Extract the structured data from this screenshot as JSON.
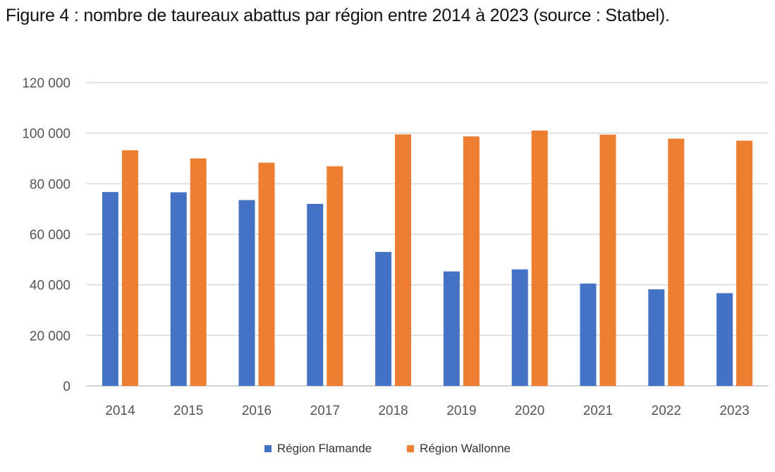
{
  "title": "Figure 4 : nombre de taureaux abattus par région entre 2014 à 2023 (source : Statbel).",
  "chart_data": {
    "type": "bar",
    "title": "Figure 4 : nombre de taureaux abattus par région entre 2014 à 2023 (source : Statbel).",
    "categories": [
      "2014",
      "2015",
      "2016",
      "2017",
      "2018",
      "2019",
      "2020",
      "2021",
      "2022",
      "2023"
    ],
    "series": [
      {
        "name": "Région Flamande",
        "color": "#4472C4",
        "values": [
          76700,
          76600,
          73500,
          72000,
          53000,
          45300,
          46100,
          40500,
          38200,
          36700
        ]
      },
      {
        "name": "Région Wallonne",
        "color": "#ED7D31",
        "values": [
          93200,
          90000,
          88300,
          86900,
          99500,
          98700,
          101000,
          99400,
          97800,
          97000
        ]
      }
    ],
    "ylim": [
      0,
      120000
    ],
    "yticks": [
      0,
      20000,
      40000,
      60000,
      80000,
      100000,
      120000
    ],
    "ytick_labels": [
      "0",
      "20 000",
      "40 000",
      "60 000",
      "80 000",
      "100 000",
      "120 000"
    ],
    "xlabel": "",
    "ylabel": "",
    "grid": true,
    "legend": "bottom"
  }
}
